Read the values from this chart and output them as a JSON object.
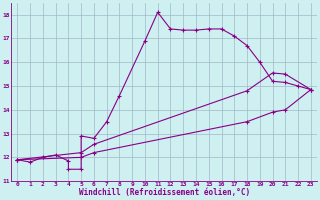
{
  "background_color": "#cff0f0",
  "line_color": "#880088",
  "grid_color": "#a0b8c8",
  "xlabel": "Windchill (Refroidissement éolien,°C)",
  "xlim": [
    -0.5,
    23.5
  ],
  "ylim": [
    11,
    18.5
  ],
  "yticks": [
    11,
    12,
    13,
    14,
    15,
    16,
    17,
    18
  ],
  "xticks": [
    0,
    1,
    2,
    3,
    4,
    5,
    6,
    7,
    8,
    9,
    10,
    11,
    12,
    13,
    14,
    15,
    16,
    17,
    18,
    19,
    20,
    21,
    22,
    23
  ],
  "series1_x": [
    0,
    1,
    2,
    3,
    4,
    4,
    5,
    5,
    6,
    7,
    8,
    10,
    11,
    12,
    13,
    14,
    15,
    16,
    17,
    18,
    19,
    20,
    21,
    22,
    23
  ],
  "series1_y": [
    11.9,
    11.8,
    12.0,
    12.1,
    11.85,
    11.5,
    11.5,
    12.9,
    12.8,
    13.5,
    14.6,
    16.9,
    18.1,
    17.4,
    17.35,
    17.35,
    17.4,
    17.4,
    17.1,
    16.7,
    16.0,
    15.2,
    15.15,
    15.0,
    14.85
  ],
  "series2_x": [
    0,
    5,
    6,
    18,
    20,
    21,
    23
  ],
  "series2_y": [
    11.9,
    12.2,
    12.55,
    14.8,
    15.55,
    15.5,
    14.85
  ],
  "series3_x": [
    0,
    5,
    6,
    18,
    20,
    21,
    23
  ],
  "series3_y": [
    11.9,
    12.0,
    12.2,
    13.5,
    13.9,
    14.0,
    14.85
  ]
}
